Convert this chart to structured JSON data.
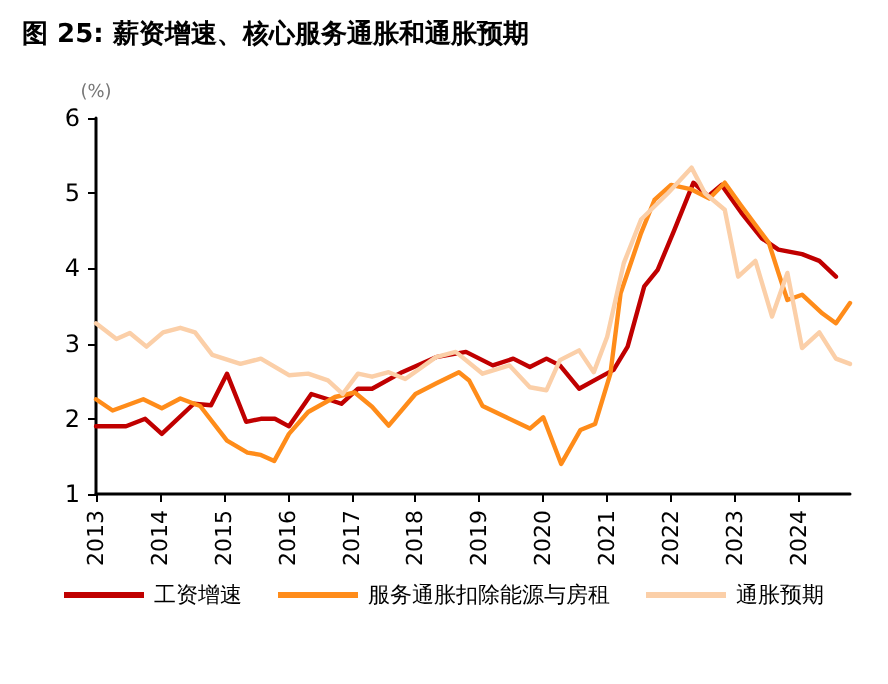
{
  "chart_data": {
    "type": "line",
    "title": "图 25: 薪资增速、核心服务通胀和通胀预期",
    "ylabel": "(%)",
    "xlim": [
      2013,
      2024.8
    ],
    "xticks": [
      2013,
      2014,
      2015,
      2016,
      2017,
      2018,
      2019,
      2020,
      2021,
      2022,
      2023,
      2024
    ],
    "ylim": [
      1,
      6
    ],
    "yticks": [
      1,
      2,
      3,
      4,
      5,
      6
    ],
    "grid": false,
    "legend": "bottom",
    "marker": "none",
    "line_style": "solid",
    "series": [
      {
        "name": "工资增速",
        "color": "#c00000",
        "x": [
          2013,
          2013.47,
          2013.77,
          2014.03,
          2014.53,
          2014.8,
          2015.05,
          2015.35,
          2015.58,
          2015.8,
          2016.02,
          2016.37,
          2016.63,
          2016.84,
          2017.1,
          2017.32,
          2017.79,
          2018.32,
          2018.79,
          2019.21,
          2019.53,
          2019.79,
          2020.05,
          2020.26,
          2020.56,
          2020.84,
          2021.1,
          2021.32,
          2021.58,
          2021.79,
          2022.05,
          2022.35,
          2022.58,
          2022.79,
          2023.1,
          2023.42,
          2023.68,
          2024.05,
          2024.32,
          2024.58
        ],
        "values": [
          1.9,
          1.9,
          2.0,
          1.8,
          2.2,
          2.18,
          2.6,
          1.96,
          2.0,
          2.0,
          1.9,
          2.33,
          2.26,
          2.2,
          2.4,
          2.4,
          2.62,
          2.82,
          2.89,
          2.71,
          2.8,
          2.69,
          2.8,
          2.71,
          2.4,
          2.53,
          2.65,
          2.96,
          3.76,
          3.98,
          4.51,
          5.14,
          4.96,
          5.11,
          4.74,
          4.4,
          4.25,
          4.19,
          4.1,
          3.89
        ]
      },
      {
        "name": "服务通胀扣除能源与房租",
        "color": "#ff8c1a",
        "x": [
          2013,
          2013.26,
          2013.74,
          2014.03,
          2014.32,
          2014.63,
          2015.05,
          2015.37,
          2015.58,
          2015.79,
          2016.02,
          2016.32,
          2016.74,
          2017.05,
          2017.32,
          2017.58,
          2018,
          2018.32,
          2018.68,
          2018.84,
          2019.05,
          2019.42,
          2019.79,
          2020,
          2020.28,
          2020.58,
          2020.81,
          2021.05,
          2021.21,
          2021.53,
          2021.74,
          2022,
          2022.32,
          2022.6,
          2022.84,
          2023.1,
          2023.53,
          2023.68,
          2023.82,
          2024.05,
          2024.37,
          2024.58,
          2024.8
        ],
        "values": [
          2.26,
          2.11,
          2.26,
          2.14,
          2.27,
          2.17,
          1.71,
          1.55,
          1.52,
          1.44,
          1.8,
          2.09,
          2.29,
          2.35,
          2.16,
          1.91,
          2.33,
          2.47,
          2.62,
          2.51,
          2.17,
          2.02,
          1.87,
          2.02,
          1.4,
          1.85,
          1.93,
          2.6,
          3.67,
          4.47,
          4.91,
          5.11,
          5.05,
          4.93,
          5.14,
          4.83,
          4.34,
          3.94,
          3.58,
          3.65,
          3.4,
          3.27,
          3.54
        ]
      },
      {
        "name": "通胀预期",
        "color": "#fbcfa8",
        "x": [
          2013,
          2013.32,
          2013.53,
          2013.79,
          2014.05,
          2014.32,
          2014.55,
          2014.82,
          2015.26,
          2015.58,
          2016.02,
          2016.32,
          2016.63,
          2016.86,
          2017.1,
          2017.32,
          2017.58,
          2017.84,
          2018.32,
          2018.63,
          2019.05,
          2019.47,
          2019.79,
          2020.05,
          2020.26,
          2020.56,
          2020.79,
          2021,
          2021.26,
          2021.53,
          2021.95,
          2022.32,
          2022.53,
          2022.84,
          2023.05,
          2023.32,
          2023.58,
          2023.82,
          2024.05,
          2024.32,
          2024.58,
          2024.8
        ],
        "values": [
          3.27,
          3.06,
          3.14,
          2.96,
          3.15,
          3.21,
          3.15,
          2.85,
          2.73,
          2.8,
          2.58,
          2.6,
          2.51,
          2.33,
          2.6,
          2.56,
          2.62,
          2.53,
          2.82,
          2.89,
          2.6,
          2.71,
          2.42,
          2.38,
          2.78,
          2.91,
          2.62,
          3.09,
          4.07,
          4.65,
          5.0,
          5.34,
          5.0,
          4.78,
          3.89,
          4.1,
          3.36,
          3.94,
          2.94,
          3.15,
          2.8,
          2.73
        ]
      }
    ]
  }
}
